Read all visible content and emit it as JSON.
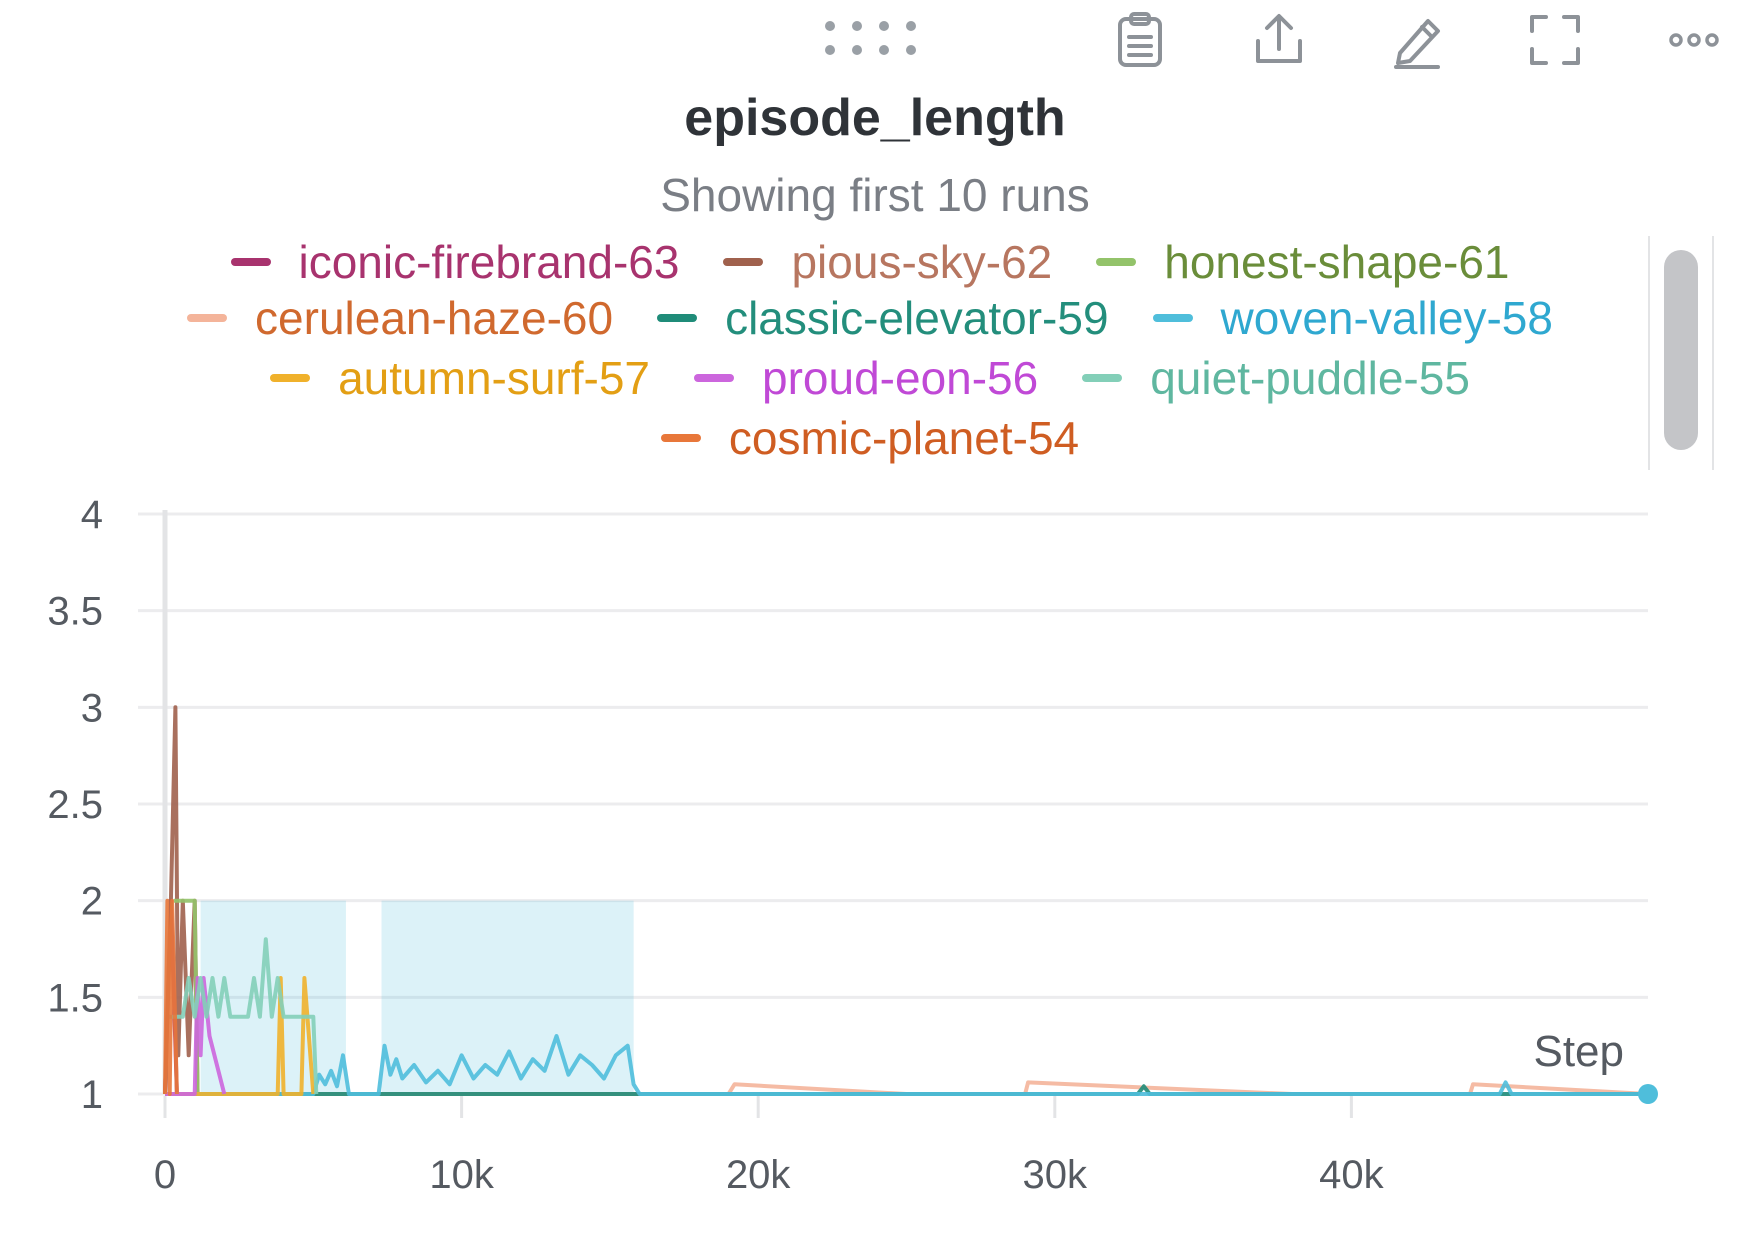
{
  "toolbar": {
    "items": [
      {
        "name": "drag-handle-icon"
      },
      {
        "name": "clipboard-icon"
      },
      {
        "name": "share-icon"
      },
      {
        "name": "edit-icon"
      },
      {
        "name": "fullscreen-icon"
      },
      {
        "name": "more-options-icon"
      }
    ]
  },
  "chart_data": {
    "type": "line",
    "title": "episode_length",
    "subtitle": "Showing first 10 runs",
    "xlabel": "Step",
    "ylabel": "",
    "xlim": [
      0,
      50000
    ],
    "ylim": [
      1,
      4
    ],
    "xticks": [
      0,
      10000,
      20000,
      30000,
      40000
    ],
    "xtick_labels": [
      "0",
      "10k",
      "20k",
      "30k",
      "40k"
    ],
    "yticks": [
      1,
      1.5,
      2,
      2.5,
      3,
      3.5,
      4
    ],
    "ytick_labels": [
      "1",
      "1.5",
      "2",
      "2.5",
      "3",
      "3.5",
      "4"
    ],
    "grid": true,
    "legend_position": "top",
    "series": [
      {
        "name": "iconic-firebrand-63",
        "color": "#a8336e",
        "label_color": "#a8336e",
        "x": [
          0,
          200,
          400,
          600,
          800,
          1000
        ],
        "y": [
          1,
          2,
          1,
          1,
          1,
          1
        ]
      },
      {
        "name": "pious-sky-62",
        "color": "#a0614d",
        "label_color": "#b77660",
        "x": [
          0,
          200,
          350,
          450,
          600,
          800,
          1000,
          1100
        ],
        "y": [
          1,
          2,
          3,
          1.2,
          2,
          1.2,
          2,
          1
        ]
      },
      {
        "name": "honest-shape-61",
        "color": "#93c36a",
        "label_color": "#6a8d3a",
        "x": [
          300,
          500,
          700,
          900,
          1000,
          1100
        ],
        "y": [
          2,
          2,
          2,
          2,
          2,
          1
        ]
      },
      {
        "name": "cerulean-haze-60",
        "color": "#f4b49a",
        "label_color": "#d0692e",
        "x": [
          0,
          5000,
          10000,
          19000,
          19200,
          25000,
          29000,
          29100,
          38000,
          44000,
          44100,
          50000
        ],
        "y": [
          1,
          1,
          1,
          1,
          1.05,
          1,
          1,
          1.06,
          1,
          1,
          1.05,
          1
        ]
      },
      {
        "name": "classic-elevator-59",
        "color": "#1f8c79",
        "label_color": "#238e7c",
        "x": [
          0,
          10000,
          20000,
          32800,
          33000,
          33200,
          40000,
          50000
        ],
        "y": [
          1,
          1,
          1,
          1,
          1.04,
          1,
          1,
          1
        ]
      },
      {
        "name": "woven-valley-58",
        "color": "#4fbedb",
        "label_color": "#2fa8d0",
        "x": [
          0,
          5000,
          5200,
          5400,
          5600,
          5800,
          6000,
          6200,
          7200,
          7400,
          7600,
          7800,
          8000,
          8400,
          8800,
          9200,
          9600,
          10000,
          10400,
          10800,
          11200,
          11600,
          12000,
          12400,
          12800,
          13200,
          13600,
          14000,
          14400,
          14800,
          15200,
          15600,
          15800,
          16000,
          20000,
          30000,
          40000,
          45000,
          45200,
          45400,
          50000
        ],
        "y": [
          1,
          1,
          1.1,
          1.05,
          1.12,
          1.04,
          1.2,
          1,
          1,
          1.25,
          1.1,
          1.18,
          1.08,
          1.15,
          1.06,
          1.12,
          1.05,
          1.2,
          1.08,
          1.15,
          1.1,
          1.22,
          1.08,
          1.18,
          1.12,
          1.3,
          1.1,
          1.2,
          1.15,
          1.08,
          1.2,
          1.25,
          1.05,
          1,
          1,
          1,
          1,
          1,
          1.06,
          1,
          1
        ]
      },
      {
        "name": "autumn-surf-57",
        "color": "#f0b12b",
        "label_color": "#e39f14",
        "x": [
          0,
          1500,
          2500,
          3800,
          3900,
          4000,
          4600,
          4700,
          4800,
          5000
        ],
        "y": [
          1,
          1,
          1,
          1,
          1.6,
          1,
          1,
          1.6,
          1.4,
          1
        ]
      },
      {
        "name": "proud-eon-56",
        "color": "#cc66dd",
        "label_color": "#c049d6",
        "x": [
          0,
          1000,
          1100,
          1200,
          1300,
          1500,
          2000
        ],
        "y": [
          1,
          1,
          1.6,
          1.2,
          1.6,
          1.3,
          1
        ]
      },
      {
        "name": "quiet-puddle-55",
        "color": "#83cfb8",
        "label_color": "#5fb7a0",
        "x": [
          150,
          600,
          800,
          1000,
          1200,
          1400,
          1600,
          1800,
          2000,
          2200,
          2500,
          2800,
          3000,
          3200,
          3400,
          3500,
          3600,
          3800,
          4000,
          4200,
          4400,
          4600,
          4800,
          5000,
          5100
        ],
        "y": [
          1.4,
          1.4,
          1.6,
          1.4,
          1.6,
          1.4,
          1.6,
          1.4,
          1.6,
          1.4,
          1.4,
          1.4,
          1.6,
          1.4,
          1.8,
          1.6,
          1.4,
          1.6,
          1.4,
          1.4,
          1.4,
          1.4,
          1.4,
          1.4,
          1
        ]
      },
      {
        "name": "cosmic-planet-54",
        "color": "#e8773a",
        "label_color": "#cf5d22",
        "x": [
          0,
          80,
          160,
          240,
          320,
          400
        ],
        "y": [
          1,
          2,
          1,
          2,
          1.5,
          1
        ]
      }
    ],
    "bands": [
      {
        "series": "woven-valley-58",
        "x_start": 1200,
        "x_end": 6100,
        "y_low": 1,
        "y_high": 2
      },
      {
        "series": "woven-valley-58",
        "x_start": 7300,
        "x_end": 15800,
        "y_low": 1,
        "y_high": 2
      }
    ]
  }
}
